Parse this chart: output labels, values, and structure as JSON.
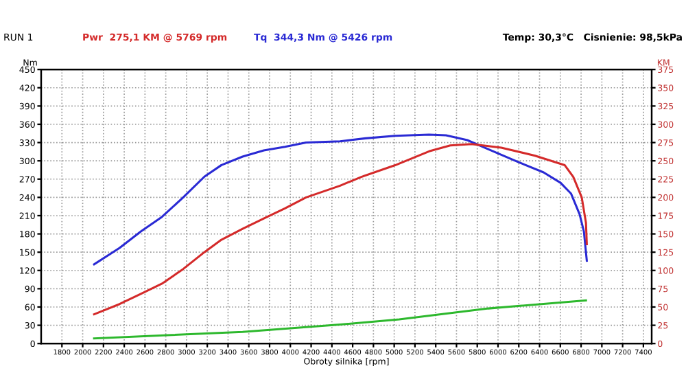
{
  "chart_data": {
    "type": "line",
    "xlabel": "Obroty silnika [rpm]",
    "ylabel": "Nm",
    "y2label": "KM",
    "annotations": [
      "RUN 1",
      "Temp: 30,3°C   Cisnienie: 98,5kPa"
    ],
    "xlim": [
      1600,
      7480
    ],
    "xticks": [
      1800,
      2000,
      2200,
      2400,
      2600,
      2800,
      3000,
      3200,
      3400,
      3600,
      3800,
      4000,
      4200,
      4400,
      4600,
      4800,
      5000,
      5200,
      5400,
      5600,
      5800,
      6000,
      6200,
      6400,
      6600,
      6800,
      7000,
      7200,
      7400
    ],
    "ylim": [
      0,
      450
    ],
    "yticks": [
      0,
      30,
      60,
      90,
      120,
      150,
      180,
      210,
      240,
      270,
      300,
      330,
      360,
      390,
      420,
      450
    ],
    "y2lim": [
      0,
      375
    ],
    "y2ticks": [
      0,
      25,
      50,
      75,
      100,
      125,
      150,
      175,
      200,
      225,
      250,
      275,
      300,
      325,
      350,
      375
    ],
    "grid": true,
    "line_style": "solid",
    "marker": "none",
    "series": [
      {
        "name": "Pwr  275,1 KM @ 5769 rpm",
        "color": "#d42a2a",
        "axis": "y2",
        "x": [
          2110,
          2355,
          2560,
          2764,
          2968,
          3172,
          3336,
          3540,
          3744,
          3948,
          4152,
          4479,
          4683,
          5009,
          5336,
          5540,
          5745,
          6031,
          6357,
          6643,
          6725,
          6806,
          6847,
          6855
        ],
        "values": [
          40,
          54,
          68,
          82,
          102,
          125,
          142,
          157,
          171,
          185,
          200,
          216,
          228,
          244,
          263,
          271,
          273,
          268,
          257,
          244,
          228,
          200,
          165,
          136
        ]
      },
      {
        "name": "Tq  344,3 Nm @ 5426 rpm",
        "color": "#2a2ad4",
        "axis": "y",
        "x": [
          2110,
          2355,
          2560,
          2764,
          2968,
          3172,
          3336,
          3540,
          3744,
          3948,
          4152,
          4479,
          4724,
          5009,
          5336,
          5499,
          5704,
          5908,
          6194,
          6439,
          6602,
          6704,
          6786,
          6827,
          6855
        ],
        "values": [
          130,
          157,
          184,
          208,
          240,
          274,
          293,
          307,
          317,
          323,
          330,
          332,
          337,
          341,
          343,
          342,
          334,
          319,
          298,
          281,
          264,
          246,
          212,
          184,
          136
        ]
      },
      {
        "color": "#2db82d",
        "axis": "y2",
        "x": [
          2110,
          3540,
          4479,
          5049,
          5908,
          6847
        ],
        "values": [
          7,
          16,
          26,
          33,
          48,
          59
        ]
      }
    ]
  }
}
